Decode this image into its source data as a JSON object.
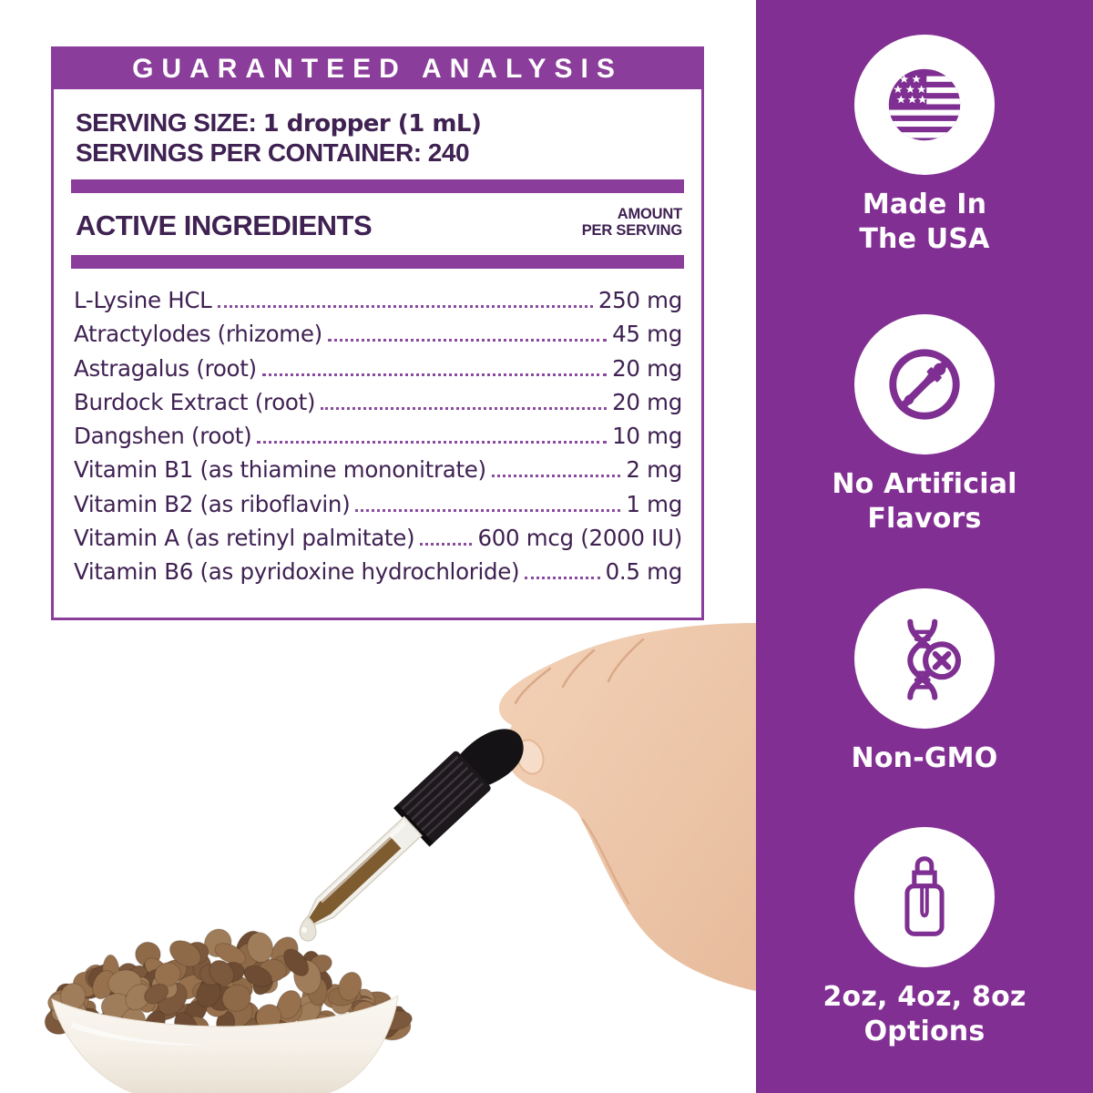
{
  "colors": {
    "sidebar_purple": "#822f93",
    "label_purple": "#8a3d9a",
    "text_ink": "#3f2152",
    "leader_dots": "#8a4a9e"
  },
  "label": {
    "header": "GUARANTEED ANALYSIS",
    "serving_size_label": "SERVING SIZE:",
    "serving_size_value": "1 dropper (1 mL)",
    "servings_per_container_label": "SERVINGS PER CONTAINER:",
    "servings_per_container_value": "240",
    "columns": {
      "ingredient": "ACTIVE INGREDIENTS",
      "amount_line1": "AMOUNT",
      "amount_line2": "PER SERVING"
    },
    "ingredients": [
      {
        "name": "L-Lysine HCL",
        "amount": "250 mg"
      },
      {
        "name": "Atractylodes (rhizome)",
        "amount": "45 mg"
      },
      {
        "name": "Astragalus (root)",
        "amount": "20 mg"
      },
      {
        "name": "Burdock Extract (root)",
        "amount": "20 mg"
      },
      {
        "name": "Dangshen (root)",
        "amount": "10 mg"
      },
      {
        "name": "Vitamin B1 (as thiamine mononitrate)",
        "amount": "2 mg"
      },
      {
        "name": "Vitamin B2 (as riboflavin)",
        "amount": "1 mg"
      },
      {
        "name": "Vitamin A (as retinyl palmitate)",
        "amount": "600 mcg (2000 IU)"
      },
      {
        "name": "Vitamin B6 (as pyridoxine hydrochloride)",
        "amount": "0.5 mg"
      }
    ]
  },
  "badges": [
    {
      "icon": "usa-flag-icon",
      "line1": "Made In",
      "line2": "The USA"
    },
    {
      "icon": "no-artificial-flavors-icon",
      "line1": "No Artificial",
      "line2": "Flavors"
    },
    {
      "icon": "non-gmo-dna-icon",
      "line1": "Non-GMO",
      "line2": ""
    },
    {
      "icon": "dropper-bottle-icon",
      "line1": "2oz, 4oz, 8oz",
      "line2": "Options"
    }
  ]
}
